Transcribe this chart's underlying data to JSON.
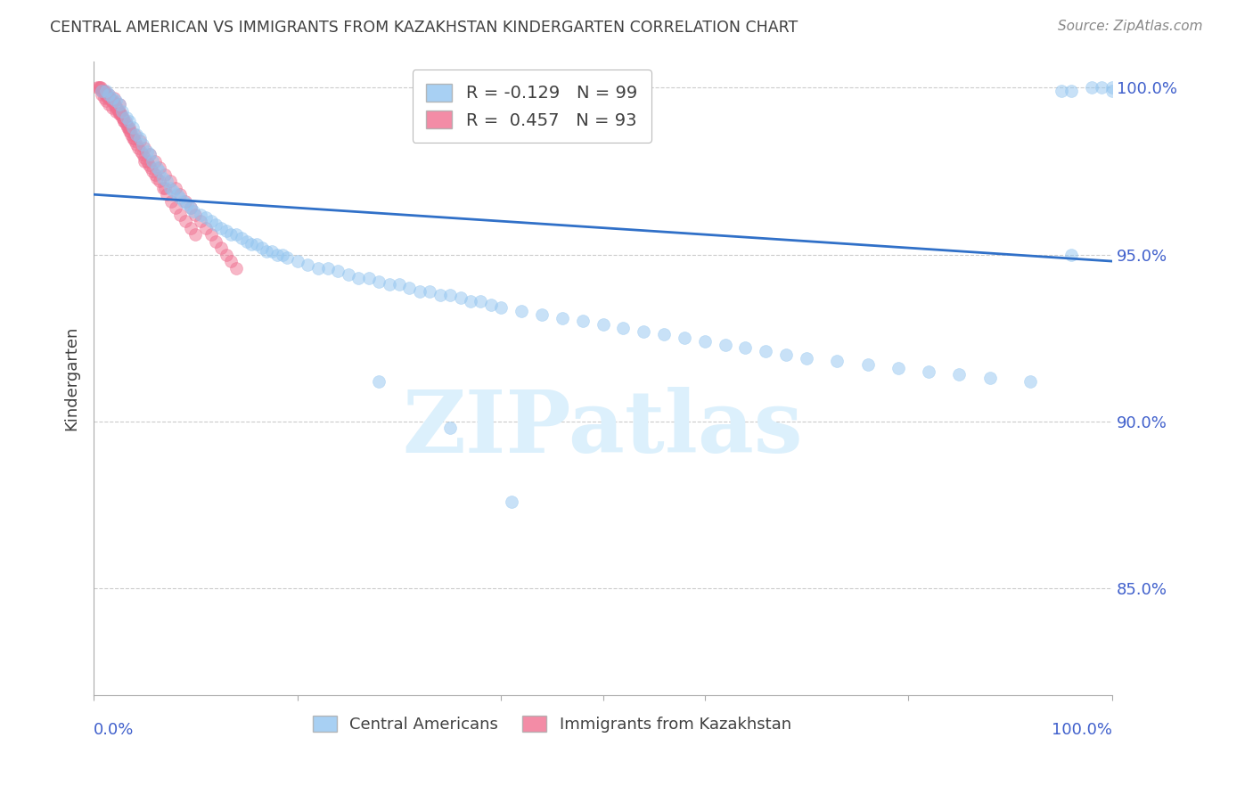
{
  "title": "CENTRAL AMERICAN VS IMMIGRANTS FROM KAZAKHSTAN KINDERGARTEN CORRELATION CHART",
  "source": "Source: ZipAtlas.com",
  "ylabel": "Kindergarten",
  "ytick_labels": [
    "100.0%",
    "95.0%",
    "90.0%",
    "85.0%"
  ],
  "ytick_values": [
    1.0,
    0.95,
    0.9,
    0.85
  ],
  "xlim": [
    0.0,
    1.0
  ],
  "ylim": [
    0.818,
    1.008
  ],
  "legend_blue_r": -0.129,
  "legend_blue_n": 99,
  "legend_pink_r": 0.457,
  "legend_pink_n": 93,
  "blue_color": "#92C5F0",
  "pink_color": "#F07090",
  "trend_color": "#3070C8",
  "watermark_color": "#DCF0FC",
  "background_color": "#FFFFFF",
  "grid_color": "#CCCCCC",
  "title_color": "#404040",
  "tick_color": "#4060CC",
  "blue_scatter_x": [
    0.008,
    0.012,
    0.015,
    0.018,
    0.022,
    0.025,
    0.028,
    0.032,
    0.035,
    0.038,
    0.042,
    0.045,
    0.048,
    0.052,
    0.055,
    0.058,
    0.062,
    0.065,
    0.068,
    0.072,
    0.075,
    0.078,
    0.082,
    0.085,
    0.088,
    0.092,
    0.095,
    0.098,
    0.105,
    0.11,
    0.115,
    0.12,
    0.125,
    0.13,
    0.135,
    0.14,
    0.145,
    0.15,
    0.155,
    0.16,
    0.165,
    0.17,
    0.175,
    0.18,
    0.185,
    0.19,
    0.2,
    0.21,
    0.22,
    0.23,
    0.24,
    0.25,
    0.26,
    0.27,
    0.28,
    0.29,
    0.3,
    0.31,
    0.32,
    0.33,
    0.34,
    0.35,
    0.36,
    0.37,
    0.38,
    0.39,
    0.4,
    0.42,
    0.44,
    0.46,
    0.48,
    0.5,
    0.52,
    0.54,
    0.56,
    0.58,
    0.6,
    0.62,
    0.64,
    0.66,
    0.68,
    0.7,
    0.73,
    0.76,
    0.79,
    0.82,
    0.85,
    0.88,
    0.92,
    0.96,
    0.98,
    0.99,
    1.0,
    1.0,
    0.95,
    0.96,
    0.35,
    0.28,
    0.41
  ],
  "blue_scatter_y": [
    0.999,
    0.999,
    0.998,
    0.997,
    0.996,
    0.995,
    0.993,
    0.991,
    0.99,
    0.988,
    0.986,
    0.985,
    0.983,
    0.981,
    0.98,
    0.978,
    0.976,
    0.975,
    0.973,
    0.972,
    0.97,
    0.969,
    0.968,
    0.967,
    0.966,
    0.965,
    0.964,
    0.963,
    0.962,
    0.961,
    0.96,
    0.959,
    0.958,
    0.957,
    0.956,
    0.956,
    0.955,
    0.954,
    0.953,
    0.953,
    0.952,
    0.951,
    0.951,
    0.95,
    0.95,
    0.949,
    0.948,
    0.947,
    0.946,
    0.946,
    0.945,
    0.944,
    0.943,
    0.943,
    0.942,
    0.941,
    0.941,
    0.94,
    0.939,
    0.939,
    0.938,
    0.938,
    0.937,
    0.936,
    0.936,
    0.935,
    0.934,
    0.933,
    0.932,
    0.931,
    0.93,
    0.929,
    0.928,
    0.927,
    0.926,
    0.925,
    0.924,
    0.923,
    0.922,
    0.921,
    0.92,
    0.919,
    0.918,
    0.917,
    0.916,
    0.915,
    0.914,
    0.913,
    0.912,
    0.95,
    1.0,
    1.0,
    1.0,
    0.999,
    0.999,
    0.999,
    0.898,
    0.912,
    0.876
  ],
  "pink_scatter_x": [
    0.003,
    0.005,
    0.006,
    0.007,
    0.008,
    0.009,
    0.01,
    0.011,
    0.012,
    0.013,
    0.014,
    0.015,
    0.016,
    0.017,
    0.018,
    0.019,
    0.02,
    0.021,
    0.022,
    0.023,
    0.024,
    0.025,
    0.026,
    0.027,
    0.028,
    0.029,
    0.03,
    0.031,
    0.032,
    0.033,
    0.034,
    0.035,
    0.036,
    0.037,
    0.038,
    0.039,
    0.04,
    0.042,
    0.044,
    0.046,
    0.048,
    0.05,
    0.052,
    0.054,
    0.056,
    0.058,
    0.06,
    0.062,
    0.065,
    0.068,
    0.072,
    0.076,
    0.08,
    0.085,
    0.09,
    0.095,
    0.1,
    0.008,
    0.01,
    0.012,
    0.015,
    0.018,
    0.022,
    0.025,
    0.03,
    0.035,
    0.04,
    0.045,
    0.05,
    0.055,
    0.06,
    0.065,
    0.07,
    0.075,
    0.08,
    0.085,
    0.09,
    0.095,
    0.1,
    0.105,
    0.11,
    0.115,
    0.12,
    0.125,
    0.13,
    0.135,
    0.14,
    0.01,
    0.015,
    0.02,
    0.025,
    0.05,
    0.07
  ],
  "pink_scatter_y": [
    1.0,
    1.0,
    1.0,
    1.0,
    0.999,
    0.999,
    0.999,
    0.998,
    0.998,
    0.998,
    0.997,
    0.997,
    0.997,
    0.996,
    0.996,
    0.996,
    0.995,
    0.995,
    0.994,
    0.994,
    0.993,
    0.993,
    0.992,
    0.992,
    0.991,
    0.991,
    0.99,
    0.99,
    0.989,
    0.988,
    0.988,
    0.987,
    0.987,
    0.986,
    0.985,
    0.985,
    0.984,
    0.983,
    0.982,
    0.981,
    0.98,
    0.979,
    0.978,
    0.977,
    0.976,
    0.975,
    0.974,
    0.973,
    0.972,
    0.97,
    0.968,
    0.966,
    0.964,
    0.962,
    0.96,
    0.958,
    0.956,
    0.998,
    0.997,
    0.996,
    0.995,
    0.994,
    0.993,
    0.992,
    0.99,
    0.988,
    0.986,
    0.984,
    0.982,
    0.98,
    0.978,
    0.976,
    0.974,
    0.972,
    0.97,
    0.968,
    0.966,
    0.964,
    0.962,
    0.96,
    0.958,
    0.956,
    0.954,
    0.952,
    0.95,
    0.948,
    0.946,
    0.999,
    0.998,
    0.997,
    0.995,
    0.978,
    0.97
  ],
  "trend_line_x": [
    0.0,
    1.0
  ],
  "trend_line_y_start": 0.968,
  "trend_line_y_end": 0.948
}
